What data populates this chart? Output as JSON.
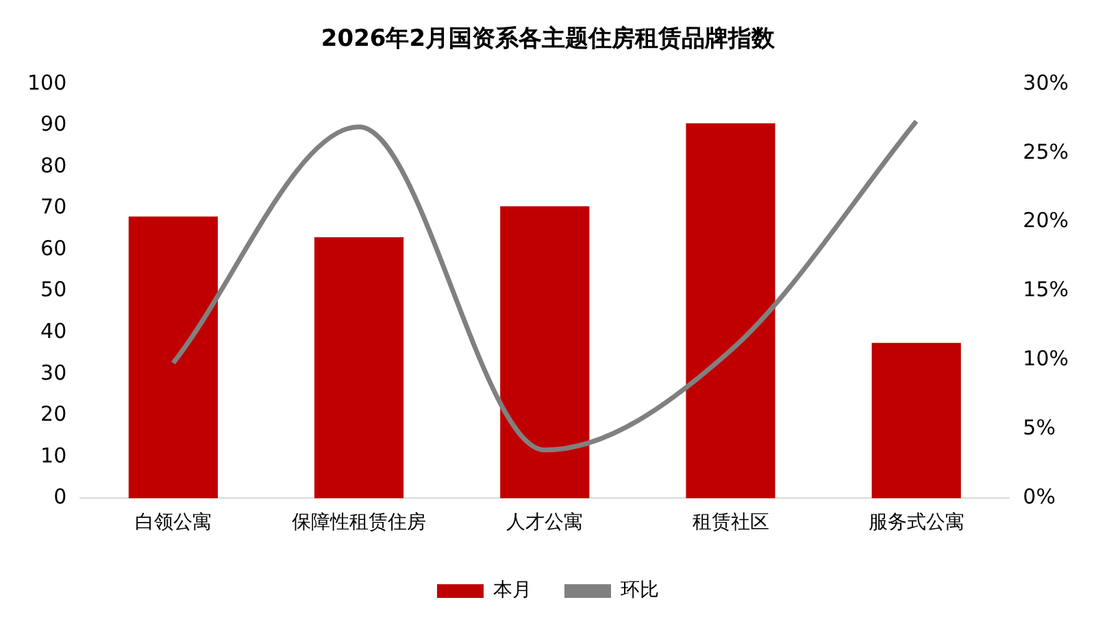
{
  "chart_data": {
    "type": "bar",
    "title": "2026年2月国资系各主题住房租赁品牌指数",
    "categories": [
      "白领公寓",
      "保障性租赁住房",
      "人才公寓",
      "租赁社区",
      "服务式公寓"
    ],
    "series": [
      {
        "name": "本月",
        "color": "#c00000",
        "values": [
          68,
          63,
          70.5,
          90.5,
          37.5
        ]
      },
      {
        "name": "环比",
        "type": "line",
        "axis": "y2",
        "color": "#808080",
        "values": [
          9.8,
          26.9,
          3.5,
          10.7,
          27.3
        ]
      }
    ],
    "ylim": [
      0,
      100
    ],
    "yticks": [
      0,
      10,
      20,
      30,
      40,
      50,
      60,
      70,
      80,
      90,
      100
    ],
    "y2lim": [
      0,
      30
    ],
    "y2ticks": [
      {
        "value": 0,
        "label": "0%"
      },
      {
        "value": 5,
        "label": "5%"
      },
      {
        "value": 10,
        "label": "10%"
      },
      {
        "value": 15,
        "label": "15%"
      },
      {
        "value": 20,
        "label": "20%"
      },
      {
        "value": 25,
        "label": "25%"
      },
      {
        "value": 30,
        "label": "30%"
      }
    ],
    "grid": false,
    "legend": "bottom",
    "marker": "none",
    "line_style": "solid"
  }
}
